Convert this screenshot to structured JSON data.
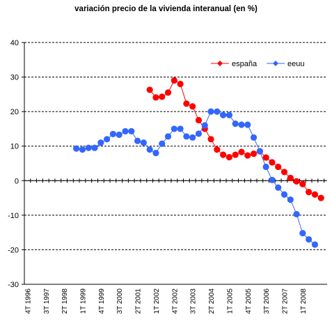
{
  "chart_data": {
    "type": "line",
    "title": "variación precio de la vivienda interanual (en %)",
    "xlabel": "",
    "ylabel": "",
    "ylim": [
      -30,
      40
    ],
    "yticks": [
      -30,
      -20,
      -10,
      0,
      10,
      20,
      30,
      40
    ],
    "grid": "horizontal-dashed",
    "legend": "top-right",
    "x_tick_labels": [
      "4T 1996",
      "3T 1997",
      "2T 1998",
      "1T 1999",
      "4T 1999",
      "3T 2000",
      "2T 2001",
      "1T 2002",
      "4T 2002",
      "3T 2003",
      "2T 2004",
      "1T 2005",
      "4T 2005",
      "3T 2006",
      "2T 2007",
      "1T 2008"
    ],
    "series": [
      {
        "name": "españa",
        "color": "#ff0000",
        "x": [
          "4T 2001",
          "1T 2002",
          "2T 2002",
          "3T 2002",
          "4T 2002",
          "1T 2003",
          "2T 2003",
          "3T 2003",
          "4T 2003",
          "1T 2004",
          "2T 2004",
          "3T 2004",
          "4T 2004",
          "1T 2005",
          "2T 2005",
          "3T 2005",
          "4T 2005",
          "1T 2006",
          "2T 2006",
          "3T 2006",
          "4T 2006",
          "1T 2007",
          "2T 2007",
          "3T 2007",
          "4T 2007",
          "1T 2008",
          "2T 2008",
          "3T 2008",
          "4T 2008"
        ],
        "values": [
          26.3,
          24.1,
          24.3,
          25.5,
          29,
          28,
          22.3,
          21.5,
          17.5,
          15,
          12,
          9,
          7.5,
          6.8,
          7.5,
          8.3,
          7.3,
          7.8,
          8.5,
          6.7,
          5.3,
          4,
          2.5,
          0.8,
          -0.2,
          -1,
          -3.3,
          -4,
          -5
        ]
      },
      {
        "name": "eeuu",
        "color": "#3366ff",
        "x": [
          "4T 1998",
          "1T 1999",
          "2T 1999",
          "3T 1999",
          "4T 1999",
          "1T 2000",
          "2T 2000",
          "3T 2000",
          "4T 2000",
          "1T 2001",
          "2T 2001",
          "3T 2001",
          "4T 2001",
          "1T 2002",
          "2T 2002",
          "3T 2002",
          "4T 2002",
          "1T 2003",
          "2T 2003",
          "3T 2003",
          "4T 2003",
          "1T 2004",
          "2T 2004",
          "3T 2004",
          "4T 2004",
          "1T 2005",
          "2T 2005",
          "3T 2005",
          "4T 2005",
          "1T 2006",
          "2T 2006",
          "3T 2006",
          "4T 2006",
          "1T 2007",
          "2T 2007",
          "3T 2007",
          "4T 2007",
          "1T 2008",
          "2T 2008",
          "3T 2008"
        ],
        "values": [
          9.3,
          9,
          9.5,
          9.5,
          11,
          12,
          13.5,
          13.3,
          14.3,
          14.3,
          11.5,
          11,
          9,
          8,
          10.7,
          12.8,
          15,
          15,
          12.8,
          12.5,
          13.6,
          16,
          20,
          20,
          19,
          19,
          16.5,
          16.2,
          16.2,
          12.5,
          8.5,
          4,
          0.2,
          -2,
          -4,
          -5.5,
          -9.7,
          -15.2,
          -17,
          -18.5
        ]
      }
    ]
  }
}
